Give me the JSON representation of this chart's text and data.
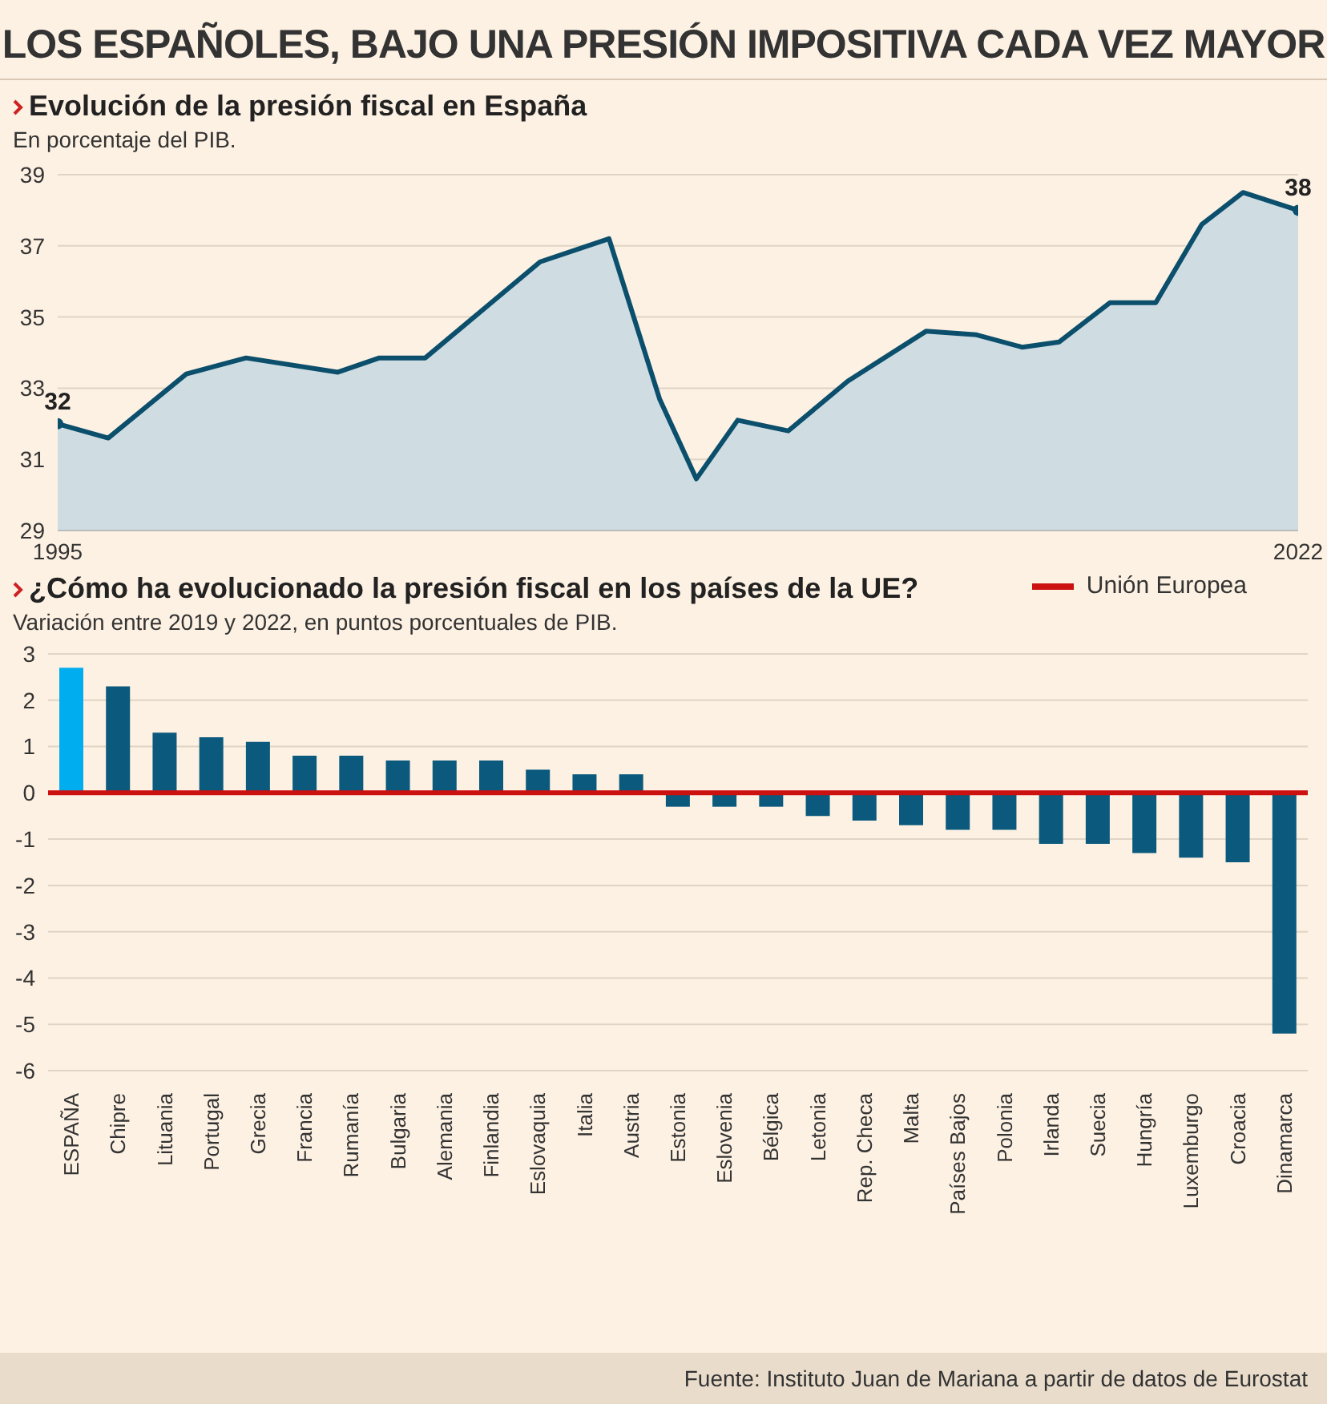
{
  "chart_data": [
    {
      "type": "area",
      "title": "Evolución de la presión fiscal en España",
      "subtitle": "En porcentaje del PIB.",
      "annotations": [
        "LOS ESPAÑOLES, BAJO UNA PRESIÓN IMPOSITIVA CADA VEZ MAYOR"
      ],
      "x": [
        1995,
        1996.1,
        1997.8,
        1999.1,
        2001.1,
        2002,
        2003,
        2005.5,
        2007,
        2008.1,
        2008.9,
        2009.8,
        2010.9,
        2012.2,
        2013.9,
        2015,
        2016,
        2016.8,
        2017.9,
        2018.9,
        2019.9,
        2020.8,
        2022
      ],
      "series": [
        {
          "color": "#0b4f6c",
          "values": [
            32,
            31.6,
            33.4,
            33.85,
            33.45,
            33.85,
            33.85,
            36.55,
            37.2,
            32.7,
            30.45,
            32.1,
            31.8,
            33.2,
            34.6,
            34.5,
            34.15,
            34.3,
            35.4,
            35.4,
            37.6,
            38.5,
            38
          ],
          "value_labels": [
            "32",
            null,
            null,
            null,
            null,
            null,
            null,
            null,
            null,
            null,
            null,
            null,
            null,
            null,
            null,
            null,
            null,
            null,
            null,
            null,
            null,
            null,
            "38"
          ]
        }
      ],
      "xlim": [
        1995,
        2022
      ],
      "xticks": [
        1995,
        2022
      ],
      "ylim": [
        29,
        39
      ],
      "yticks": [
        29,
        31,
        33,
        35,
        37,
        39
      ],
      "grid": "y"
    },
    {
      "type": "bar",
      "title": "¿Cómo ha evolucionado la presión fiscal en los países de la UE?",
      "subtitle": "Variación entre 2019 y 2022, en puntos porcentuales de PIB.",
      "categories": [
        "ESPAÑA",
        "Chipre",
        "Lituania",
        "Portugal",
        "Grecia",
        "Francia",
        "Rumanía",
        "Bulgaria",
        "Alemania",
        "Finlandia",
        "Eslovaquia",
        "Italia",
        "Austria",
        "Estonia",
        "Eslovenia",
        "Bélgica",
        "Letonia",
        "Rep. Checa",
        "Malta",
        "Países Bajos",
        "Polonia",
        "Irlanda",
        "Suecia",
        "Hungría",
        "Luxemburgo",
        "Croacia",
        "Dinamarca"
      ],
      "values": [
        2.7,
        2.3,
        1.3,
        1.2,
        1.1,
        0.8,
        0.8,
        0.7,
        0.7,
        0.7,
        0.5,
        0.4,
        0.4,
        -0.3,
        -0.3,
        -0.3,
        -0.5,
        -0.6,
        -0.7,
        -0.8,
        -0.8,
        -1.1,
        -1.1,
        -1.3,
        -1.4,
        -1.5,
        -5.2
      ],
      "colors": [
        "#00aeef",
        "#0b5a7e",
        "#0b5a7e",
        "#0b5a7e",
        "#0b5a7e",
        "#0b5a7e",
        "#0b5a7e",
        "#0b5a7e",
        "#0b5a7e",
        "#0b5a7e",
        "#0b5a7e",
        "#0b5a7e",
        "#0b5a7e",
        "#0b5a7e",
        "#0b5a7e",
        "#0b5a7e",
        "#0b5a7e",
        "#0b5a7e",
        "#0b5a7e",
        "#0b5a7e",
        "#0b5a7e",
        "#0b5a7e",
        "#0b5a7e",
        "#0b5a7e",
        "#0b5a7e",
        "#0b5a7e",
        "#0b5a7e"
      ],
      "ref_lines": [
        {
          "axis": "y",
          "value": 0,
          "label": "Unión Europea",
          "color": "#cc1111"
        }
      ],
      "legend": "top right",
      "ylim": [
        -6,
        3
      ],
      "yticks": [
        -6,
        -5,
        -4,
        -3,
        -2,
        -1,
        0,
        1,
        2,
        3
      ],
      "grid": "y",
      "annotations": [
        "Fuente: Instituto Juan de Mariana a partir de datos de Eurostat"
      ]
    }
  ]
}
